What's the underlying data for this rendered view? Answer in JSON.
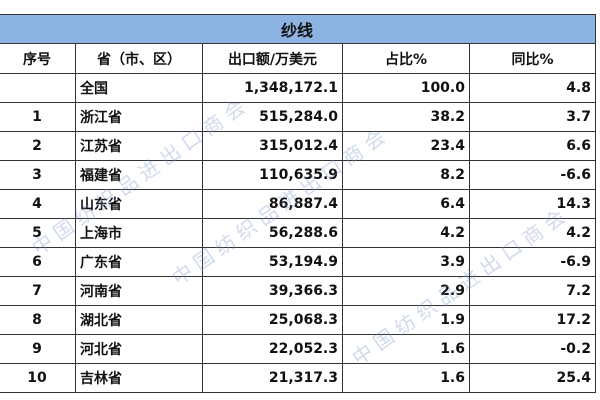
{
  "title": "纱线",
  "headers": [
    "序号",
    "省（市、区）",
    "出口额/万美元",
    "占比%",
    "同比%"
  ],
  "rows": [
    [
      "",
      "全国",
      "1,348,172.1",
      "100.0",
      "4.8"
    ],
    [
      "1",
      "浙江省",
      "515,284.0",
      "38.2",
      "3.7"
    ],
    [
      "2",
      "江苏省",
      "315,012.4",
      "23.4",
      "6.6"
    ],
    [
      "3",
      "福建省",
      "110,635.9",
      "8.2",
      "-6.6"
    ],
    [
      "4",
      "山东省",
      "86,887.4",
      "6.4",
      "14.3"
    ],
    [
      "5",
      "上海市",
      "56,288.6",
      "4.2",
      "4.2"
    ],
    [
      "6",
      "广东省",
      "53,194.9",
      "3.9",
      "-6.9"
    ],
    [
      "7",
      "河南省",
      "39,366.3",
      "2.9",
      "7.2"
    ],
    [
      "8",
      "湖北省",
      "25,068.3",
      "1.9",
      "17.2"
    ],
    [
      "9",
      "河北省",
      "22,052.3",
      "1.6",
      "-0.2"
    ],
    [
      "10",
      "吉林省",
      "21,317.3",
      "1.6",
      "25.4"
    ]
  ],
  "watermark": "中国纺织品进出口商会",
  "colors": {
    "title_bg": "#8db3e2"
  }
}
